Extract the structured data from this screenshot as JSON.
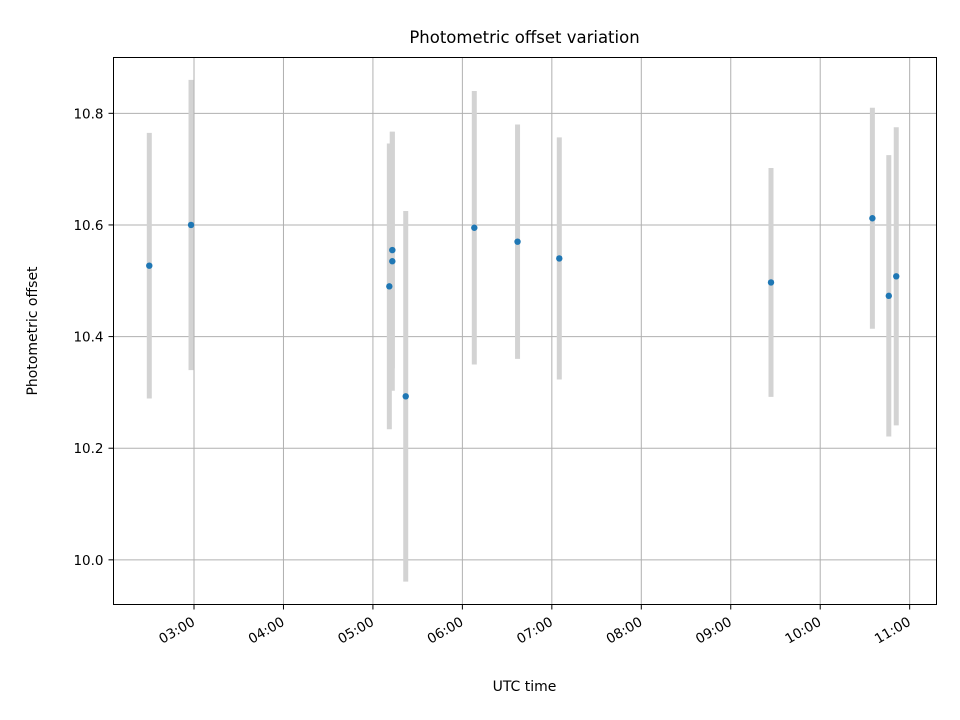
{
  "chart_data": {
    "type": "scatter",
    "title": "Photometric offset variation",
    "xlabel": "UTC time",
    "ylabel": "Photometric offset",
    "xlim": [
      "02:06",
      "11:18"
    ],
    "ylim": [
      9.92,
      10.9
    ],
    "xticks": [
      "03:00",
      "04:00",
      "05:00",
      "06:00",
      "07:00",
      "08:00",
      "09:00",
      "10:00",
      "11:00"
    ],
    "yticks": [
      10.0,
      10.2,
      10.4,
      10.6,
      10.8
    ],
    "grid": true,
    "legend": "none",
    "colors": {
      "point": "#1f77b4",
      "errorbar": "#d3d3d3",
      "grid": "#b0b0b0"
    },
    "points": [
      {
        "x": "02:30",
        "y": 10.527,
        "err": 0.238
      },
      {
        "x": "02:58",
        "y": 10.6,
        "err": 0.26
      },
      {
        "x": "05:11",
        "y": 10.49,
        "err": 0.256
      },
      {
        "x": "05:13",
        "y": 10.535,
        "err": 0.232
      },
      {
        "x": "05:13",
        "y": 10.555,
        "err": 0.212
      },
      {
        "x": "05:22",
        "y": 10.293,
        "err": 0.332
      },
      {
        "x": "06:08",
        "y": 10.595,
        "err": 0.245
      },
      {
        "x": "06:37",
        "y": 10.57,
        "err": 0.21
      },
      {
        "x": "07:05",
        "y": 10.54,
        "err": 0.217
      },
      {
        "x": "09:27",
        "y": 10.497,
        "err": 0.205
      },
      {
        "x": "10:35",
        "y": 10.612,
        "err": 0.198
      },
      {
        "x": "10:46",
        "y": 10.473,
        "err": 0.252
      },
      {
        "x": "10:51",
        "y": 10.508,
        "err": 0.267
      }
    ]
  }
}
